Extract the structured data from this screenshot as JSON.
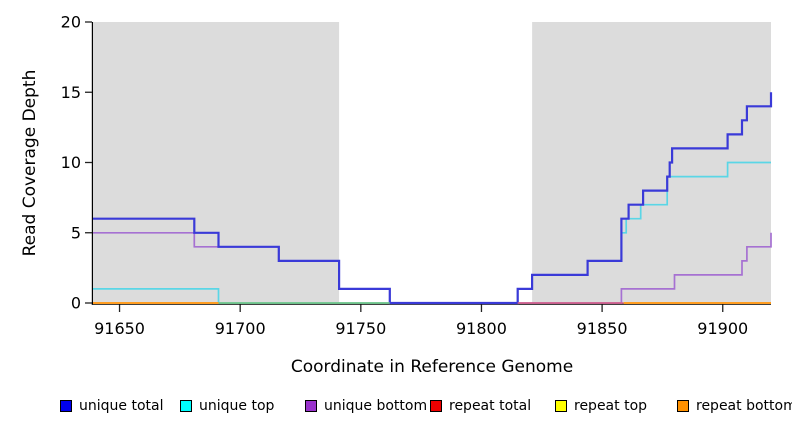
{
  "chart_data": {
    "type": "line",
    "step": true,
    "title": "",
    "xlabel": "Coordinate in Reference Genome",
    "ylabel": "Read Coverage Depth",
    "xlim": [
      91639,
      91920
    ],
    "ylim": [
      0,
      20
    ],
    "xticks": [
      91650,
      91700,
      91750,
      91800,
      91850,
      91900
    ],
    "yticks": [
      0,
      5,
      10,
      15,
      20
    ],
    "grid": false,
    "legend_position": "bottom",
    "background_color": "#ffffff",
    "shaded_regions": [
      {
        "name": "shaded-region-left",
        "x0": 91639,
        "x1": 91741,
        "color": "#dcdcdc"
      },
      {
        "name": "shaded-region-right",
        "x0": 91821,
        "x1": 91920,
        "color": "#dcdcdc"
      }
    ],
    "series": [
      {
        "name": "unique-top",
        "label": "unique top",
        "color": "#5ad6e6",
        "width": 1.7,
        "paths": [
          [
            [
              91639,
              1
            ],
            [
              91691,
              0
            ],
            [
              91815,
              1
            ],
            [
              91821,
              2
            ],
            [
              91844,
              3
            ],
            [
              91858,
              5
            ],
            [
              91860,
              6
            ],
            [
              91866,
              7
            ],
            [
              91877,
              9
            ],
            [
              91902,
              10
            ],
            [
              91920,
              10
            ]
          ]
        ]
      },
      {
        "name": "unique-bottom",
        "label": "unique bottom",
        "color": "#a671d2",
        "width": 1.7,
        "paths": [
          [
            [
              91639,
              5
            ],
            [
              91681,
              4
            ],
            [
              91716,
              3
            ],
            [
              91741,
              1
            ],
            [
              91762,
              0
            ],
            [
              91858,
              1
            ],
            [
              91880,
              2
            ],
            [
              91908,
              3
            ],
            [
              91910,
              4
            ],
            [
              91920,
              5
            ]
          ]
        ]
      },
      {
        "name": "unique-total",
        "label": "unique total",
        "color": "#3a3ad8",
        "width": 2.2,
        "paths": [
          [
            [
              91639,
              6
            ],
            [
              91681,
              5
            ],
            [
              91691,
              4
            ],
            [
              91716,
              3
            ],
            [
              91741,
              1
            ],
            [
              91762,
              0
            ],
            [
              91815,
              1
            ],
            [
              91821,
              2
            ],
            [
              91844,
              3
            ],
            [
              91858,
              6
            ],
            [
              91861,
              7
            ],
            [
              91867,
              8
            ],
            [
              91877,
              9
            ],
            [
              91878,
              10
            ],
            [
              91879,
              11
            ],
            [
              91902,
              12
            ],
            [
              91908,
              13
            ],
            [
              91910,
              14
            ],
            [
              91920,
              15
            ]
          ]
        ]
      },
      {
        "name": "unlabeled-green",
        "label": null,
        "color": "#77c47a",
        "width": 1.5,
        "paths": [
          [
            [
              91691,
              0
            ],
            [
              91762,
              0
            ]
          ]
        ]
      },
      {
        "name": "repeat-total",
        "label": "repeat total",
        "color": "#d95f82",
        "width": 1.5,
        "paths": [
          [
            [
              91815,
              0
            ],
            [
              91859,
              0
            ]
          ]
        ]
      },
      {
        "name": "repeat-top",
        "label": "repeat top",
        "color": "#ffff00",
        "width": 1.5,
        "paths": []
      },
      {
        "name": "repeat-bottom",
        "label": "repeat bottom",
        "color": "#ff9d21",
        "width": 2,
        "paths": [
          [
            [
              91639,
              0
            ],
            [
              91691,
              0
            ]
          ],
          [
            [
              91859,
              0
            ],
            [
              91920,
              0
            ]
          ]
        ]
      }
    ],
    "legend": [
      {
        "label": "unique total",
        "color": "#0000ee"
      },
      {
        "label": "unique top",
        "color": "#00ffff"
      },
      {
        "label": "unique bottom",
        "color": "#9932cc"
      },
      {
        "label": "repeat total",
        "color": "#ee0000"
      },
      {
        "label": "repeat top",
        "color": "#ffff00"
      },
      {
        "label": "repeat bottom",
        "color": "#ff9100"
      }
    ]
  }
}
